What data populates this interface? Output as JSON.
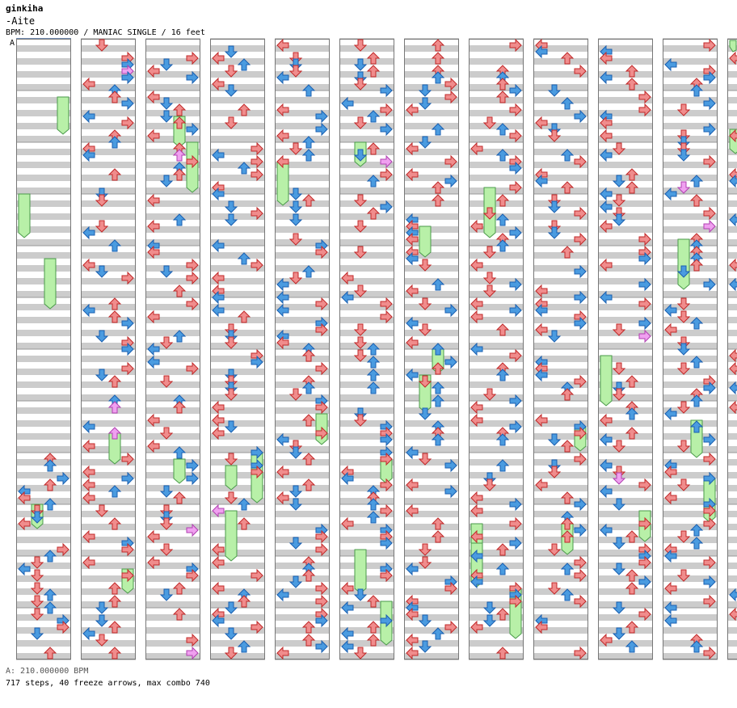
{
  "header": {
    "artist": "ginkiha",
    "title": "-Aite",
    "meta": "BPM: 210.000000 / MANIAC SINGLE / 16 feet",
    "speed_marker": "A"
  },
  "footer": {
    "bpm_line": "A: 210.000000 BPM",
    "stats_line": "717 steps, 40 freeze arrows, max combo 740"
  },
  "colors": {
    "quarter_note": "#f08c8c",
    "eighth_note": "#4a9be0",
    "sixteenth_note": "#f0a0f0",
    "freeze_body": "#b8f0a8",
    "stripe": "#cccccc",
    "column_border": "#777777"
  },
  "chart_data": {
    "type": "step-chart",
    "mode": "MANIAC SINGLE",
    "difficulty_feet": 16,
    "bpm": 210.0,
    "steps": 717,
    "freeze_arrows": 40,
    "max_combo": 740,
    "lanes": [
      "left",
      "down",
      "up",
      "right"
    ],
    "columns": 12,
    "measures_per_column": 12
  }
}
